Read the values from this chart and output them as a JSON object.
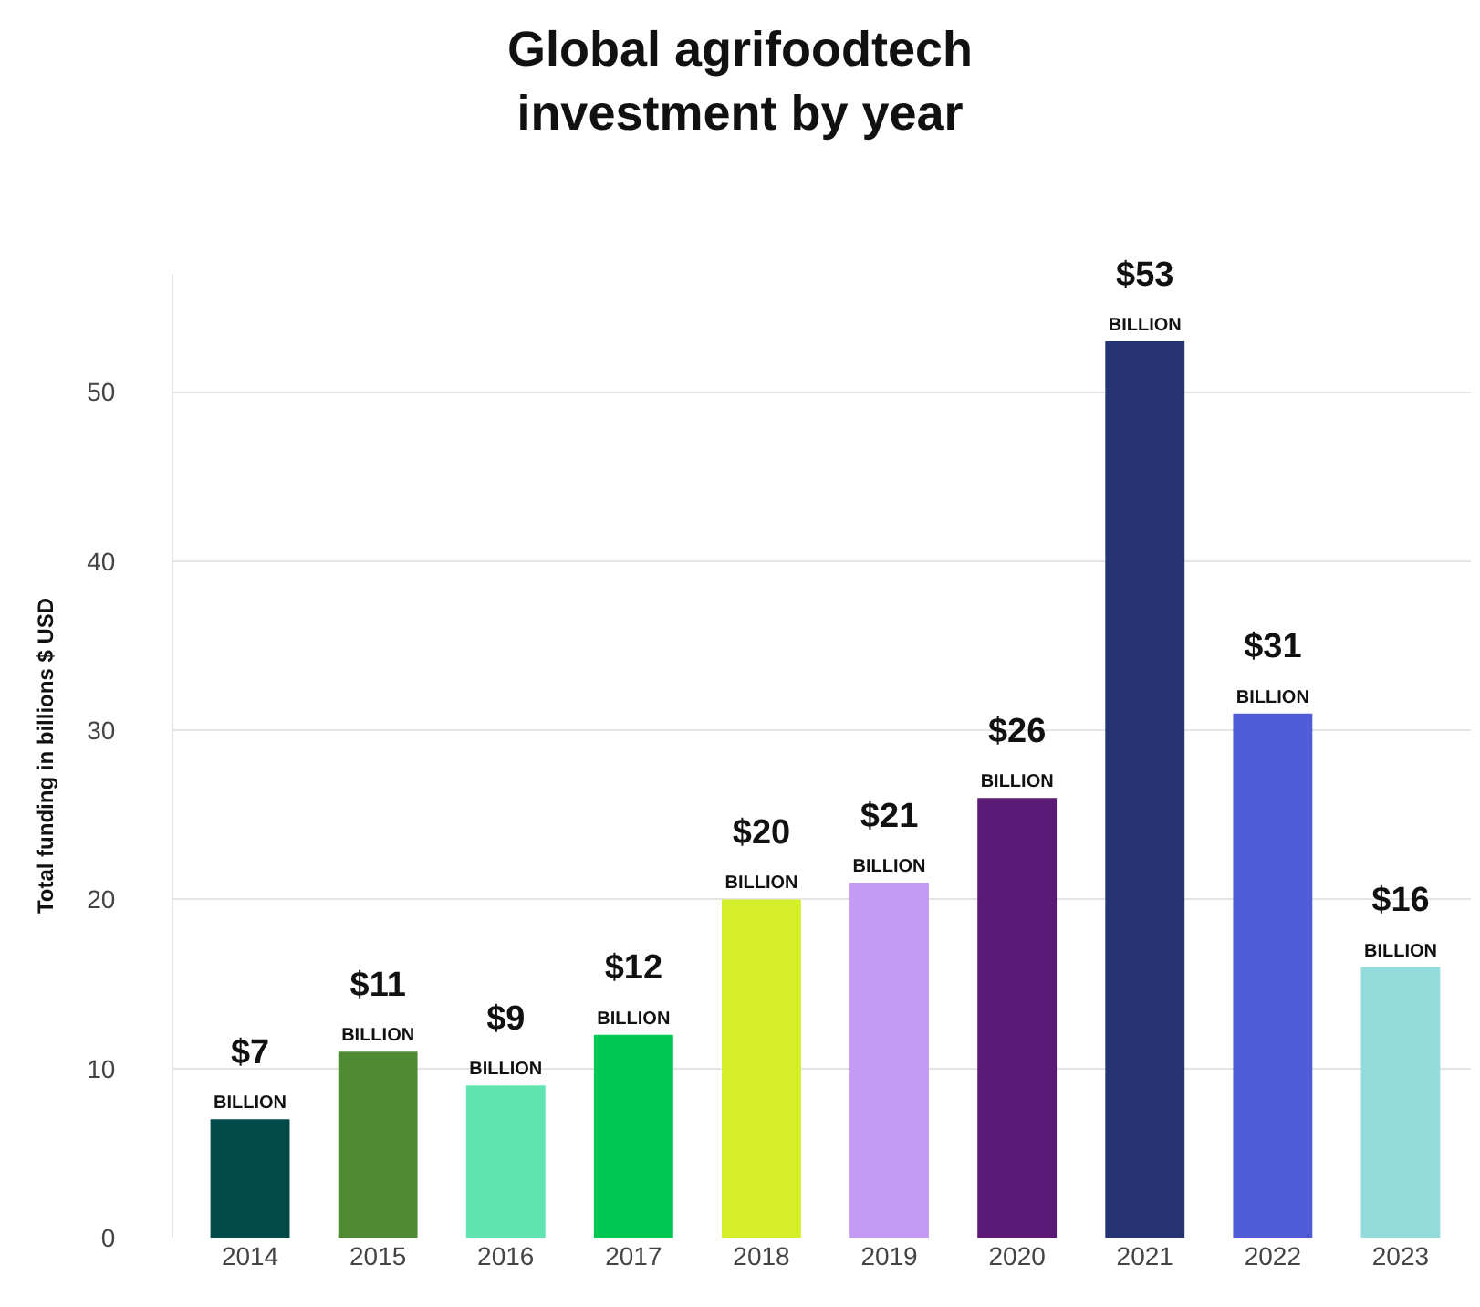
{
  "chart_data": {
    "type": "bar",
    "title": "Global agrifoodtech\ninvestment by year",
    "ylabel": "Total funding in billions $ USD",
    "categories": [
      "2014",
      "2015",
      "2016",
      "2017",
      "2018",
      "2019",
      "2020",
      "2021",
      "2022",
      "2023"
    ],
    "values": [
      7,
      11,
      9,
      12,
      20,
      21,
      26,
      53,
      31,
      16
    ],
    "value_labels": [
      "$7\nBILLION",
      "$11\nBILLION",
      "$9\nBILLION",
      "$12\nBILLION",
      "$20\nBILLION",
      "$21\nBILLION",
      "$26\nBILLION",
      "$53\nBILLION",
      "$31\nBILLION",
      "$16\nBILLION"
    ],
    "colors": [
      "#034a4a",
      "#4f8a34",
      "#62e3b2",
      "#00c853",
      "#d4ef2a",
      "#c49af5",
      "#5b1a75",
      "#263372",
      "#4f5cd6",
      "#94dcdc"
    ],
    "ylim": [
      0,
      57
    ],
    "yticks": [
      0,
      10,
      20,
      30,
      40,
      50
    ],
    "grid": "y"
  }
}
